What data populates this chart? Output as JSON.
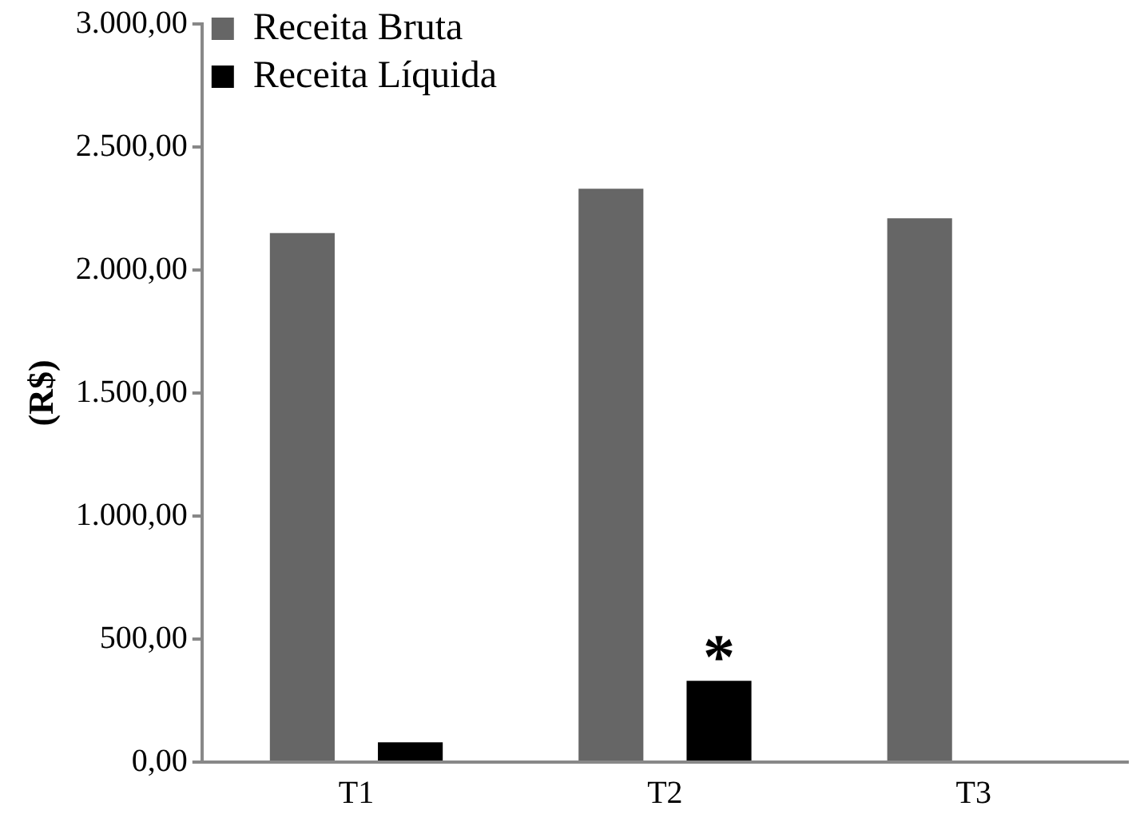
{
  "chart_data": {
    "type": "bar",
    "ylabel": "(R$)",
    "categories": [
      "T1",
      "T2",
      "T3"
    ],
    "series": [
      {
        "name": "Receita Bruta",
        "color": "#666666",
        "values": [
          2150,
          2330,
          2210
        ]
      },
      {
        "name": "Receita Líquida",
        "color": "#000000",
        "values": [
          80,
          330,
          0
        ]
      }
    ],
    "ylim": [
      0,
      3000
    ],
    "yticks": [
      {
        "value": 0,
        "label": "0,00"
      },
      {
        "value": 500,
        "label": "500,00"
      },
      {
        "value": 1000,
        "label": "1.000,00"
      },
      {
        "value": 1500,
        "label": "1.500,00"
      },
      {
        "value": 2000,
        "label": "2.000,00"
      },
      {
        "value": 2500,
        "label": "2.500,00"
      },
      {
        "value": 3000,
        "label": "3.000,00"
      }
    ],
    "annotations": [
      "*"
    ],
    "grid": false,
    "legend": "top left"
  }
}
